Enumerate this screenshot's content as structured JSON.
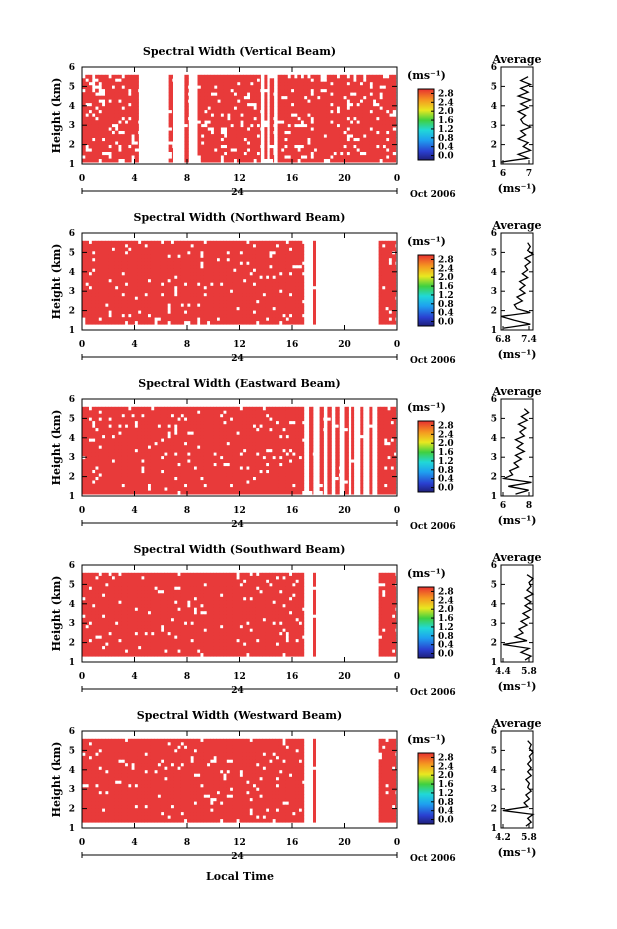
{
  "figure": {
    "xlabel": "Local Time",
    "date_label": "Oct 2006",
    "day_label": "24",
    "color_unit": "(ms⁻¹)",
    "avg_title": "Average",
    "avg_xlabel": "(ms⁻¹)"
  },
  "chart_data": [
    {
      "type": "heatmap",
      "title": "Spectral Width (Vertical Beam)",
      "ylabel": "Height (km)",
      "xlim": [
        0,
        24
      ],
      "xticks": [
        "0",
        "4",
        "8",
        "12",
        "16",
        "20",
        "0"
      ],
      "ylim": [
        1,
        6
      ],
      "yticks": [
        "1",
        "2",
        "3",
        "4",
        "5",
        "6"
      ],
      "colorbar_ticks": [
        "0.0",
        "0.4",
        "0.8",
        "1.2",
        "1.6",
        "2.0",
        "2.4",
        "2.8"
      ],
      "data_height_range": [
        1.1,
        5.6
      ],
      "time_coverage": [
        [
          0.0,
          4.3
        ],
        [
          6.6,
          6.9
        ],
        [
          7.8,
          8.1
        ],
        [
          8.8,
          13.6
        ],
        [
          13.9,
          14.1
        ],
        [
          14.3,
          14.6
        ],
        [
          14.9,
          23.9
        ]
      ],
      "fill": 0.85,
      "average_profile": {
        "xlim": [
          6,
          7.3
        ],
        "xticks": [
          "6",
          "7"
        ],
        "height": [
          1.1,
          1.3,
          1.5,
          1.7,
          1.9,
          2.1,
          2.3,
          2.5,
          2.7,
          2.9,
          3.1,
          3.3,
          3.5,
          3.7,
          3.9,
          4.1,
          4.3,
          4.5,
          4.7,
          4.9,
          5.1,
          5.3,
          5.5
        ],
        "value": [
          6.0,
          7.1,
          6.7,
          7.2,
          6.9,
          7.1,
          6.7,
          7.0,
          6.8,
          7.2,
          6.9,
          6.8,
          7.0,
          6.7,
          7.1,
          6.8,
          7.2,
          6.7,
          7.1,
          6.8,
          7.2,
          6.8,
          7.1
        ]
      }
    },
    {
      "type": "heatmap",
      "title": "Spectral Width (Northward Beam)",
      "ylabel": "Height (km)",
      "xlim": [
        0,
        24
      ],
      "xticks": [
        "0",
        "4",
        "8",
        "12",
        "16",
        "20",
        "0"
      ],
      "ylim": [
        1,
        6
      ],
      "yticks": [
        "1",
        "2",
        "3",
        "4",
        "5",
        "6"
      ],
      "colorbar_ticks": [
        "0.0",
        "0.4",
        "0.8",
        "1.2",
        "1.6",
        "2.0",
        "2.4",
        "2.8"
      ],
      "data_height_range": [
        1.3,
        5.6
      ],
      "time_coverage": [
        [
          0.0,
          16.9
        ],
        [
          17.6,
          17.8
        ],
        [
          22.6,
          23.9
        ]
      ],
      "fill": 0.93,
      "average_profile": {
        "xlim": [
          6.4,
          7.6
        ],
        "xticks": [
          "6.8",
          "7.4"
        ],
        "height": [
          1.1,
          1.3,
          1.5,
          1.7,
          1.9,
          2.1,
          2.3,
          2.5,
          2.7,
          2.9,
          3.1,
          3.3,
          3.5,
          3.7,
          3.9,
          4.1,
          4.3,
          4.5,
          4.7,
          4.9,
          5.1,
          5.3,
          5.5
        ],
        "value": [
          6.5,
          7.5,
          6.9,
          6.4,
          7.5,
          7.0,
          6.9,
          7.2,
          7.0,
          7.3,
          7.1,
          7.3,
          7.1,
          7.4,
          7.2,
          7.4,
          7.3,
          7.5,
          7.3,
          7.6,
          7.4,
          7.5,
          7.4
        ]
      }
    },
    {
      "type": "heatmap",
      "title": "Spectral Width (Eastward Beam)",
      "ylabel": "Height (km)",
      "xlim": [
        0,
        24
      ],
      "xticks": [
        "0",
        "4",
        "8",
        "12",
        "16",
        "20",
        "0"
      ],
      "ylim": [
        1,
        6
      ],
      "yticks": [
        "1",
        "2",
        "3",
        "4",
        "5",
        "6"
      ],
      "colorbar_ticks": [
        "0.0",
        "0.4",
        "0.8",
        "1.2",
        "1.6",
        "2.0",
        "2.4",
        "2.8"
      ],
      "data_height_range": [
        1.1,
        5.6
      ],
      "time_coverage": [
        [
          0.0,
          16.9
        ],
        [
          17.3,
          17.6
        ],
        [
          18.1,
          18.4
        ],
        [
          18.7,
          19.0
        ],
        [
          19.3,
          19.6
        ],
        [
          20.0,
          20.3
        ],
        [
          20.5,
          20.7
        ],
        [
          21.2,
          21.4
        ],
        [
          21.9,
          22.1
        ],
        [
          22.5,
          23.9
        ]
      ],
      "fill": 0.93,
      "average_profile": {
        "xlim": [
          6,
          8.2
        ],
        "xticks": [
          "6",
          "8"
        ],
        "height": [
          1.1,
          1.3,
          1.5,
          1.7,
          1.9,
          2.1,
          2.3,
          2.5,
          2.7,
          2.9,
          3.1,
          3.3,
          3.5,
          3.7,
          3.9,
          4.1,
          4.3,
          4.5,
          4.7,
          4.9,
          5.1,
          5.3,
          5.5
        ],
        "value": [
          7.0,
          7.9,
          6.5,
          8.1,
          6.2,
          6.8,
          6.6,
          7.2,
          6.9,
          7.4,
          7.0,
          7.6,
          7.1,
          7.5,
          7.0,
          7.6,
          7.3,
          7.7,
          7.2,
          7.8,
          7.4,
          7.9,
          7.6
        ]
      }
    },
    {
      "type": "heatmap",
      "title": "Spectral Width (Southward Beam)",
      "ylabel": "Height (km)",
      "xlim": [
        0,
        24
      ],
      "xticks": [
        "0",
        "4",
        "8",
        "12",
        "16",
        "20",
        "0"
      ],
      "ylim": [
        1,
        6
      ],
      "yticks": [
        "1",
        "2",
        "3",
        "4",
        "5",
        "6"
      ],
      "colorbar_ticks": [
        "0.0",
        "0.4",
        "0.8",
        "1.2",
        "1.6",
        "2.0",
        "2.4",
        "2.8"
      ],
      "data_height_range": [
        1.3,
        5.6
      ],
      "time_coverage": [
        [
          0.0,
          16.9
        ],
        [
          17.6,
          17.8
        ],
        [
          22.6,
          23.9
        ]
      ],
      "fill": 0.93,
      "average_profile": {
        "xlim": [
          4.3,
          5.9
        ],
        "xticks": [
          "4.4",
          "5.8"
        ],
        "height": [
          1.1,
          1.3,
          1.5,
          1.7,
          1.9,
          2.1,
          2.3,
          2.5,
          2.7,
          2.9,
          3.1,
          3.3,
          3.5,
          3.7,
          3.9,
          4.1,
          4.3,
          4.5,
          4.7,
          4.9,
          5.1,
          5.3,
          5.5
        ],
        "value": [
          5.5,
          5.8,
          5.3,
          5.7,
          4.4,
          5.6,
          5.0,
          5.4,
          5.2,
          5.6,
          5.3,
          5.7,
          5.4,
          5.8,
          5.5,
          5.8,
          5.5,
          5.9,
          5.6,
          5.8,
          5.7,
          5.9,
          5.6
        ]
      }
    },
    {
      "type": "heatmap",
      "title": "Spectral Width (Westward Beam)",
      "ylabel": "Height (km)",
      "xlim": [
        0,
        24
      ],
      "xticks": [
        "0",
        "4",
        "8",
        "12",
        "16",
        "20",
        "0"
      ],
      "ylim": [
        1,
        6
      ],
      "yticks": [
        "1",
        "2",
        "3",
        "4",
        "5",
        "6"
      ],
      "colorbar_ticks": [
        "0.0",
        "0.4",
        "0.8",
        "1.2",
        "1.6",
        "2.0",
        "2.4",
        "2.8"
      ],
      "data_height_range": [
        1.3,
        5.6
      ],
      "time_coverage": [
        [
          0.0,
          16.9
        ],
        [
          17.6,
          17.8
        ],
        [
          22.6,
          23.9
        ]
      ],
      "fill": 0.93,
      "average_profile": {
        "xlim": [
          4.1,
          5.9
        ],
        "xticks": [
          "4.2",
          "5.8"
        ],
        "height": [
          1.1,
          1.3,
          1.5,
          1.7,
          1.9,
          2.1,
          2.3,
          2.5,
          2.7,
          2.9,
          3.1,
          3.3,
          3.5,
          3.7,
          3.9,
          4.1,
          4.3,
          4.5,
          4.7,
          4.9,
          5.1,
          5.3,
          5.5
        ],
        "value": [
          5.5,
          5.8,
          5.6,
          5.9,
          4.2,
          5.6,
          5.4,
          5.7,
          5.5,
          5.8,
          5.6,
          5.7,
          5.5,
          5.8,
          5.6,
          5.8,
          5.6,
          5.8,
          5.7,
          5.9,
          5.7,
          5.8,
          5.6
        ]
      }
    }
  ]
}
